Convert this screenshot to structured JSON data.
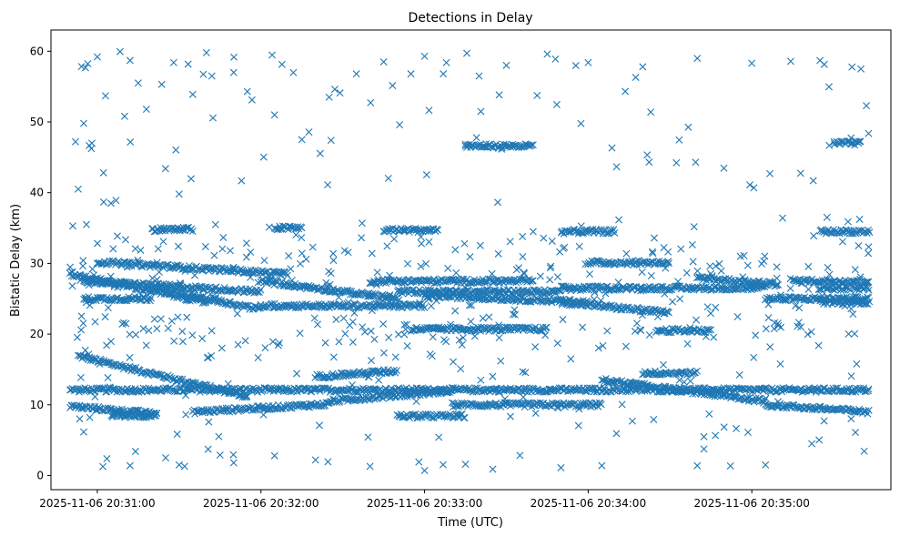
{
  "chart_data": {
    "type": "scatter",
    "title": "Detections in Delay",
    "xlabel": "Time (UTC)",
    "ylabel": "Bistatic Delay (km)",
    "x_ticks": [
      "2025-11-06 20:31:00",
      "2025-11-06 20:32:00",
      "2025-11-06 20:33:00",
      "2025-11-06 20:34:00",
      "2025-11-06 20:35:00"
    ],
    "y_ticks": [
      0,
      10,
      20,
      30,
      40,
      50,
      60
    ],
    "xlim": [
      "2025-11-06 20:30:43",
      "2025-11-06 20:35:51"
    ],
    "ylim": [
      -2,
      63
    ],
    "marker": "x",
    "color": "#1f77b4",
    "grid": false,
    "legend": false,
    "time_range": [
      "2025-11-06 20:30:50",
      "2025-11-06 20:35:43"
    ],
    "tracks": [
      {
        "y_start": 16.9,
        "y_end": 11.2,
        "t_start": "2025-11-06 20:30:53",
        "t_end": "2025-11-06 20:31:55"
      },
      {
        "y_start": 12.1,
        "y_end": 12.1,
        "t_start": "2025-11-06 20:30:50",
        "t_end": "2025-11-06 20:35:43"
      },
      {
        "y_start": 9.8,
        "y_end": 8.7,
        "t_start": "2025-11-06 20:30:50",
        "t_end": "2025-11-06 20:31:22"
      },
      {
        "y_start": 8.5,
        "y_end": 8.5,
        "t_start": "2025-11-06 20:31:05",
        "t_end": "2025-11-06 20:31:22"
      },
      {
        "y_start": 9.0,
        "y_end": 10.1,
        "t_start": "2025-11-06 20:31:35",
        "t_end": "2025-11-06 20:32:25"
      },
      {
        "y_start": 10.5,
        "y_end": 12.0,
        "t_start": "2025-11-06 20:32:25",
        "t_end": "2025-11-06 20:33:10"
      },
      {
        "y_start": 8.4,
        "y_end": 8.4,
        "t_start": "2025-11-06 20:32:50",
        "t_end": "2025-11-06 20:33:15"
      },
      {
        "y_start": 10.0,
        "y_end": 10.0,
        "t_start": "2025-11-06 20:33:10",
        "t_end": "2025-11-06 20:34:05"
      },
      {
        "y_start": 13.5,
        "y_end": 10.5,
        "t_start": "2025-11-06 20:34:05",
        "t_end": "2025-11-06 20:35:05"
      },
      {
        "y_start": 10.0,
        "y_end": 9.0,
        "t_start": "2025-11-06 20:35:05",
        "t_end": "2025-11-06 20:35:43"
      },
      {
        "y_start": 14.0,
        "y_end": 14.8,
        "t_start": "2025-11-06 20:32:20",
        "t_end": "2025-11-06 20:32:50"
      },
      {
        "y_start": 14.5,
        "y_end": 14.5,
        "t_start": "2025-11-06 20:34:20",
        "t_end": "2025-11-06 20:34:40"
      },
      {
        "y_start": 28.5,
        "y_end": 24.5,
        "t_start": "2025-11-06 20:30:50",
        "t_end": "2025-11-06 20:31:40"
      },
      {
        "y_start": 27.5,
        "y_end": 26.0,
        "t_start": "2025-11-06 20:30:55",
        "t_end": "2025-11-06 20:32:00"
      },
      {
        "y_start": 25.0,
        "y_end": 25.0,
        "t_start": "2025-11-06 20:30:55",
        "t_end": "2025-11-06 20:31:20"
      },
      {
        "y_start": 30.2,
        "y_end": 28.5,
        "t_start": "2025-11-06 20:31:00",
        "t_end": "2025-11-06 20:32:10"
      },
      {
        "y_start": 26.5,
        "y_end": 23.5,
        "t_start": "2025-11-06 20:31:20",
        "t_end": "2025-11-06 20:32:00"
      },
      {
        "y_start": 24.0,
        "y_end": 24.0,
        "t_start": "2025-11-06 20:32:00",
        "t_end": "2025-11-06 20:33:00"
      },
      {
        "y_start": 27.5,
        "y_end": 25.0,
        "t_start": "2025-11-06 20:32:00",
        "t_end": "2025-11-06 20:32:50"
      },
      {
        "y_start": 26.0,
        "y_end": 26.0,
        "t_start": "2025-11-06 20:32:50",
        "t_end": "2025-11-06 20:33:50"
      },
      {
        "y_start": 27.5,
        "y_end": 27.5,
        "t_start": "2025-11-06 20:32:40",
        "t_end": "2025-11-06 20:33:40"
      },
      {
        "y_start": 25.5,
        "y_end": 24.5,
        "t_start": "2025-11-06 20:33:00",
        "t_end": "2025-11-06 20:34:00"
      },
      {
        "y_start": 24.5,
        "y_end": 23.0,
        "t_start": "2025-11-06 20:33:50",
        "t_end": "2025-11-06 20:34:30"
      },
      {
        "y_start": 26.5,
        "y_end": 26.5,
        "t_start": "2025-11-06 20:33:50",
        "t_end": "2025-11-06 20:35:05"
      },
      {
        "y_start": 28.0,
        "y_end": 27.0,
        "t_start": "2025-11-06 20:34:40",
        "t_end": "2025-11-06 20:35:10"
      },
      {
        "y_start": 25.0,
        "y_end": 25.0,
        "t_start": "2025-11-06 20:35:05",
        "t_end": "2025-11-06 20:35:43"
      },
      {
        "y_start": 27.5,
        "y_end": 27.5,
        "t_start": "2025-11-06 20:35:15",
        "t_end": "2025-11-06 20:35:43"
      },
      {
        "y_start": 26.5,
        "y_end": 26.5,
        "t_start": "2025-11-06 20:35:25",
        "t_end": "2025-11-06 20:35:43"
      },
      {
        "y_start": 24.5,
        "y_end": 24.5,
        "t_start": "2025-11-06 20:35:25",
        "t_end": "2025-11-06 20:35:43"
      },
      {
        "y_start": 30.1,
        "y_end": 30.1,
        "t_start": "2025-11-06 20:34:00",
        "t_end": "2025-11-06 20:34:30"
      },
      {
        "y_start": 20.7,
        "y_end": 20.7,
        "t_start": "2025-11-06 20:32:55",
        "t_end": "2025-11-06 20:33:20"
      },
      {
        "y_start": 20.7,
        "y_end": 20.7,
        "t_start": "2025-11-06 20:33:20",
        "t_end": "2025-11-06 20:33:45"
      },
      {
        "y_start": 20.5,
        "y_end": 20.5,
        "t_start": "2025-11-06 20:34:25",
        "t_end": "2025-11-06 20:34:45"
      },
      {
        "y_start": 34.8,
        "y_end": 34.8,
        "t_start": "2025-11-06 20:31:20",
        "t_end": "2025-11-06 20:31:35"
      },
      {
        "y_start": 35.0,
        "y_end": 35.0,
        "t_start": "2025-11-06 20:32:05",
        "t_end": "2025-11-06 20:32:15"
      },
      {
        "y_start": 34.7,
        "y_end": 34.7,
        "t_start": "2025-11-06 20:32:45",
        "t_end": "2025-11-06 20:33:05"
      },
      {
        "y_start": 34.5,
        "y_end": 34.5,
        "t_start": "2025-11-06 20:33:50",
        "t_end": "2025-11-06 20:34:10"
      },
      {
        "y_start": 34.5,
        "y_end": 34.5,
        "t_start": "2025-11-06 20:35:25",
        "t_end": "2025-11-06 20:35:43"
      },
      {
        "y_start": 46.6,
        "y_end": 46.6,
        "t_start": "2025-11-06 20:33:15",
        "t_end": "2025-11-06 20:33:40"
      },
      {
        "y_start": 47.0,
        "y_end": 47.0,
        "t_start": "2025-11-06 20:35:30",
        "t_end": "2025-11-06 20:35:40"
      }
    ],
    "scatter_points": [
      {
        "x": "2025-11-06 20:30:51",
        "y": 35.3
      },
      {
        "x": "2025-11-06 20:30:52",
        "y": 47.2
      },
      {
        "x": "2025-11-06 20:30:53",
        "y": 40.5
      },
      {
        "x": "2025-11-06 20:30:55",
        "y": 49.8
      },
      {
        "x": "2025-11-06 20:30:56",
        "y": 35.5
      },
      {
        "x": "2025-11-06 20:30:58",
        "y": 47.0
      },
      {
        "x": "2025-11-06 20:31:00",
        "y": 59.2
      },
      {
        "x": "2025-11-06 20:31:03",
        "y": 53.7
      },
      {
        "x": "2025-11-06 20:31:05",
        "y": 38.5
      },
      {
        "x": "2025-11-06 20:31:10",
        "y": 50.8
      },
      {
        "x": "2025-11-06 20:31:12",
        "y": 58.7
      },
      {
        "x": "2025-11-06 20:31:15",
        "y": 55.5
      },
      {
        "x": "2025-11-06 20:31:18",
        "y": 51.8
      },
      {
        "x": "2025-11-06 20:31:25",
        "y": 43.4
      },
      {
        "x": "2025-11-06 20:31:28",
        "y": 58.4
      },
      {
        "x": "2025-11-06 20:31:30",
        "y": 39.8
      },
      {
        "x": "2025-11-06 20:31:35",
        "y": 53.9
      },
      {
        "x": "2025-11-06 20:31:40",
        "y": 59.8
      },
      {
        "x": "2025-11-06 20:31:42",
        "y": 56.5
      },
      {
        "x": "2025-11-06 20:31:50",
        "y": 57.0
      },
      {
        "x": "2025-11-06 20:31:55",
        "y": 54.3
      },
      {
        "x": "2025-11-06 20:32:05",
        "y": 51.0
      },
      {
        "x": "2025-11-06 20:32:15",
        "y": 47.5
      },
      {
        "x": "2025-11-06 20:32:25",
        "y": 53.5
      },
      {
        "x": "2025-11-06 20:32:35",
        "y": 56.8
      },
      {
        "x": "2025-11-06 20:32:45",
        "y": 58.5
      },
      {
        "x": "2025-11-06 20:32:55",
        "y": 56.8
      },
      {
        "x": "2025-11-06 20:33:00",
        "y": 59.3
      },
      {
        "x": "2025-11-06 20:33:08",
        "y": 58.4
      },
      {
        "x": "2025-11-06 20:33:20",
        "y": 56.5
      },
      {
        "x": "2025-11-06 20:33:30",
        "y": 58.0
      },
      {
        "x": "2025-11-06 20:33:45",
        "y": 59.6
      },
      {
        "x": "2025-11-06 20:33:48",
        "y": 58.9
      },
      {
        "x": "2025-11-06 20:34:00",
        "y": 58.4
      },
      {
        "x": "2025-11-06 20:34:20",
        "y": 57.8
      },
      {
        "x": "2025-11-06 20:34:40",
        "y": 59.0
      },
      {
        "x": "2025-11-06 20:35:00",
        "y": 58.3
      },
      {
        "x": "2025-11-06 20:35:25",
        "y": 58.7
      },
      {
        "x": "2025-11-06 20:35:40",
        "y": 57.5
      },
      {
        "x": "2025-11-06 20:35:42",
        "y": 52.3
      },
      {
        "x": "2025-11-06 20:31:12",
        "y": 1.4
      },
      {
        "x": "2025-11-06 20:31:14",
        "y": 3.4
      },
      {
        "x": "2025-11-06 20:31:30",
        "y": 1.5
      },
      {
        "x": "2025-11-06 20:31:32",
        "y": 1.3
      },
      {
        "x": "2025-11-06 20:31:45",
        "y": 2.9
      },
      {
        "x": "2025-11-06 20:31:50",
        "y": 1.8
      },
      {
        "x": "2025-11-06 20:32:05",
        "y": 2.8
      },
      {
        "x": "2025-11-06 20:32:20",
        "y": 2.2
      },
      {
        "x": "2025-11-06 20:32:40",
        "y": 1.3
      },
      {
        "x": "2025-11-06 20:33:00",
        "y": 0.7
      },
      {
        "x": "2025-11-06 20:33:15",
        "y": 1.6
      },
      {
        "x": "2025-11-06 20:33:25",
        "y": 0.9
      },
      {
        "x": "2025-11-06 20:33:50",
        "y": 1.1
      },
      {
        "x": "2025-11-06 20:34:05",
        "y": 1.4
      },
      {
        "x": "2025-11-06 20:34:40",
        "y": 1.4
      },
      {
        "x": "2025-11-06 20:35:05",
        "y": 1.5
      },
      {
        "x": "2025-11-06 20:35:22",
        "y": 4.5
      }
    ]
  }
}
